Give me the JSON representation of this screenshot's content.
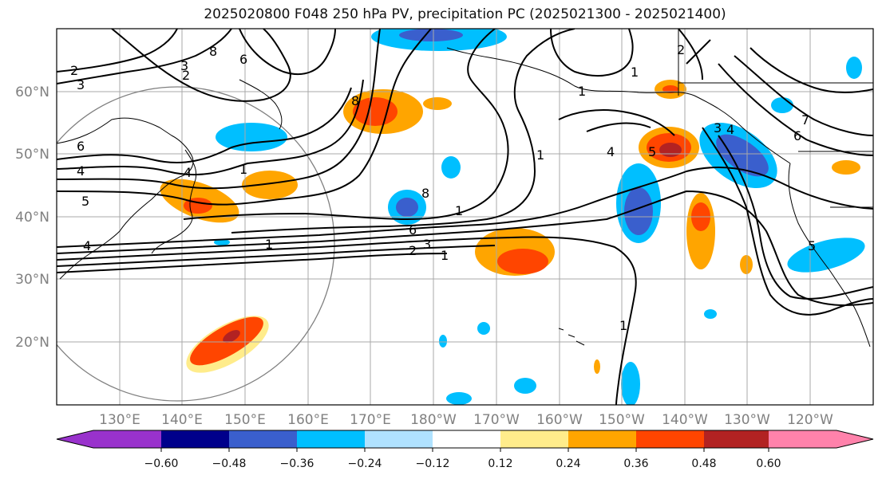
{
  "title": "2025020800 F048 250 hPa PV, precipitation PC (2025021300 - 2025021400)",
  "map": {
    "lat_labels": [
      "60°N",
      "50°N",
      "40°N",
      "30°N",
      "20°N"
    ],
    "lon_labels": [
      "130°E",
      "140°E",
      "150°E",
      "160°E",
      "170°E",
      "180°W",
      "170°W",
      "160°W",
      "150°W",
      "140°W",
      "130°W",
      "120°W"
    ],
    "pv_contour_labels": [
      "2",
      "3",
      "6",
      "4",
      "5",
      "4",
      "4",
      "1",
      "6",
      "8",
      "8",
      "2",
      "3",
      "1",
      "6",
      "3",
      "2",
      "1",
      "1",
      "8",
      "1",
      "4",
      "5",
      "4",
      "3",
      "6",
      "7",
      "2",
      "5",
      "1",
      "1",
      "1"
    ]
  },
  "colorbar": {
    "tick_labels": [
      "−0.60",
      "−0.48",
      "−0.36",
      "−0.24",
      "−0.12",
      "0.12",
      "0.24",
      "0.36",
      "0.48",
      "0.60"
    ],
    "colors": [
      "#9932cc",
      "#00008b",
      "#3a5fcd",
      "#00bfff",
      "#b0e2ff",
      "#ffffff",
      "#ffec8b",
      "#ffa500",
      "#ff4500",
      "#b22222",
      "#ff82ab"
    ]
  }
}
